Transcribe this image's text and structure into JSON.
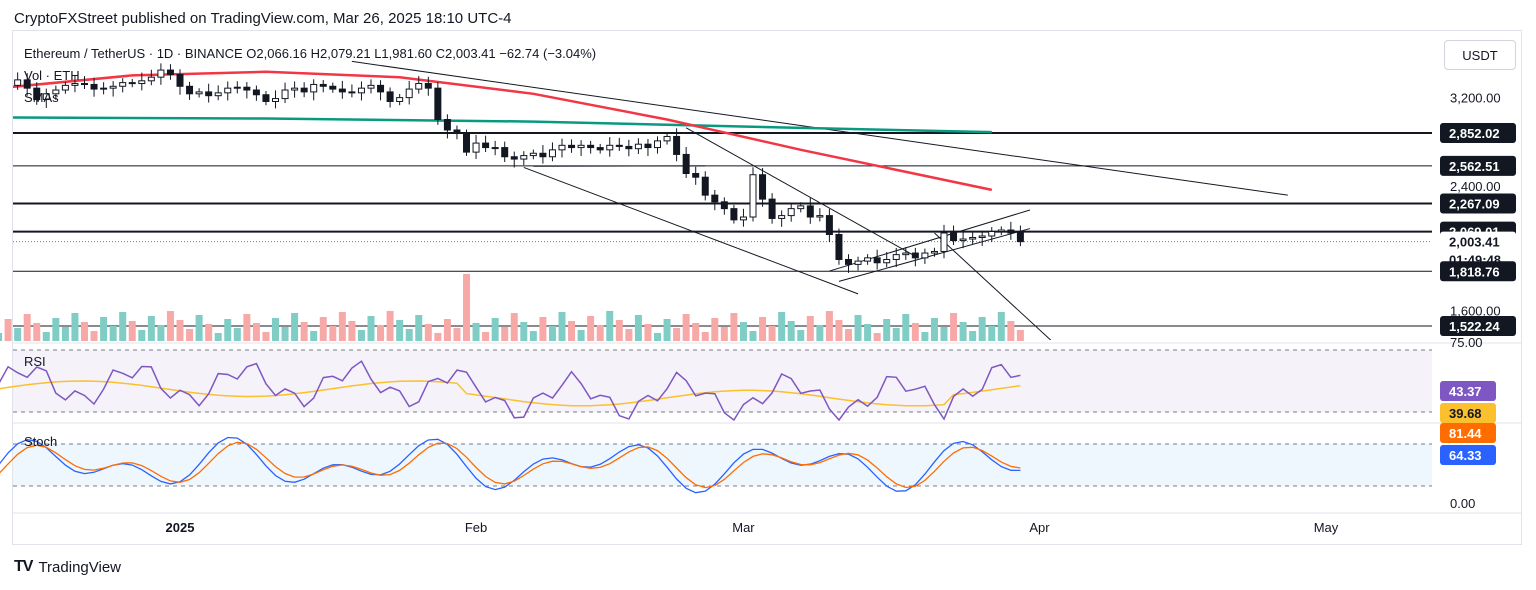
{
  "header": {
    "text": "CryptoFXStreet published on TradingView.com, Mar 26, 2025 18:10 UTC-4"
  },
  "legend": {
    "symbol_line": "Ethereum / TetherUS · 1D · BINANCE  O2,066.16  H2,079.21  L1,981.60  C2,003.41  −62.74 (−3.04%)",
    "volume": "Vol · ETH",
    "smas": "SMAs"
  },
  "price_scale": {
    "currency": "USDT",
    "ticks": [
      "3,200.00",
      "2,400.00",
      "1,600.00"
    ],
    "tags": [
      {
        "label": "2,852.02",
        "bg": "#131722",
        "fg": "#ffffff"
      },
      {
        "label": "2,562.51",
        "bg": "#131722",
        "fg": "#ffffff"
      },
      {
        "label": "2,267.09",
        "bg": "#131722",
        "fg": "#ffffff"
      },
      {
        "label": "2,069.01",
        "bg": "#131722",
        "fg": "#ffffff"
      },
      {
        "label": "2,003.41",
        "bg": "#ffffff",
        "fg": "#131722"
      },
      {
        "label": "01:49:48",
        "bg": "#ffffff",
        "fg": "#131722"
      },
      {
        "label": "1,818.76",
        "bg": "#131722",
        "fg": "#ffffff"
      },
      {
        "label": "1,522.24",
        "bg": "#131722",
        "fg": "#ffffff"
      }
    ]
  },
  "rsi": {
    "label": "RSI",
    "top_tick": "75.00",
    "value": "43.37",
    "value_color": "#7e57c2",
    "ma_value": "39.68",
    "ma_color": "#fbc02d"
  },
  "stoch": {
    "label": "Stoch",
    "k_value": "81.44",
    "k_color": "#ff6d00",
    "d_value": "64.33",
    "d_color": "#2962ff",
    "bottom_tick": "0.00"
  },
  "time_axis": [
    "2025",
    "Feb",
    "Mar",
    "Apr",
    "May"
  ],
  "colors": {
    "up": "#ffffff",
    "down": "#131722",
    "sma50": "#f23645",
    "sma200": "#089981",
    "vol_up": "#7fcdc5",
    "vol_down": "#f7a9a7"
  },
  "branding": "TradingView",
  "chart_data": {
    "type": "candlestick",
    "symbol": "ETH/USDT",
    "interval": "1D",
    "last": {
      "open": 2066.16,
      "high": 2079.21,
      "low": 1981.6,
      "close": 2003.41,
      "change": -62.74,
      "change_pct": -3.04
    },
    "horizontal_levels": [
      2852.02,
      2562.51,
      2267.09,
      2069.01,
      1818.76,
      1522.24
    ],
    "price_range": [
      1400,
      3500
    ],
    "start_date": "2024-12-13",
    "closes": [
      3400,
      3330,
      3390,
      3300,
      3180,
      3240,
      3280,
      3330,
      3350,
      3340,
      3290,
      3300,
      3320,
      3360,
      3350,
      3380,
      3420,
      3500,
      3450,
      3320,
      3240,
      3260,
      3220,
      3250,
      3300,
      3310,
      3280,
      3230,
      3160,
      3190,
      3280,
      3300,
      3260,
      3340,
      3320,
      3290,
      3260,
      3250,
      3300,
      3330,
      3260,
      3160,
      3200,
      3290,
      3350,
      3300,
      2980,
      2880,
      2850,
      2680,
      2760,
      2720,
      2720,
      2640,
      2620,
      2650,
      2670,
      2640,
      2700,
      2740,
      2720,
      2740,
      2720,
      2700,
      2740,
      2730,
      2710,
      2750,
      2720,
      2780,
      2820,
      2660,
      2500,
      2470,
      2330,
      2280,
      2230,
      2150,
      2170,
      2490,
      2300,
      2160,
      2180,
      2230,
      2250,
      2170,
      2180,
      2050,
      1890,
      1860,
      1880,
      1900,
      1870,
      1890,
      1920,
      1930,
      1900,
      1930,
      1940,
      2060,
      2010,
      2020,
      2030,
      2040,
      2070,
      2080,
      2060,
      2003
    ],
    "volume_start_date": "2024-12-13",
    "sma50": [
      {
        "date": "2024-12-13",
        "value": 3300
      },
      {
        "date": "2024-12-27",
        "value": 3440
      },
      {
        "date": "2025-01-10",
        "value": 3480
      },
      {
        "date": "2025-01-24",
        "value": 3420
      },
      {
        "date": "2025-02-07",
        "value": 3240
      },
      {
        "date": "2025-02-21",
        "value": 2980
      },
      {
        "date": "2025-03-07",
        "value": 2700
      },
      {
        "date": "2025-03-27",
        "value": 2370
      }
    ],
    "sma200": [
      {
        "date": "2024-12-13",
        "value": 3000
      },
      {
        "date": "2025-01-10",
        "value": 2990
      },
      {
        "date": "2025-02-07",
        "value": 2960
      },
      {
        "date": "2025-03-07",
        "value": 2900
      },
      {
        "date": "2025-03-27",
        "value": 2860
      }
    ],
    "rsi_range": [
      0,
      100
    ],
    "rsi_bands": [
      30,
      70
    ]
  }
}
